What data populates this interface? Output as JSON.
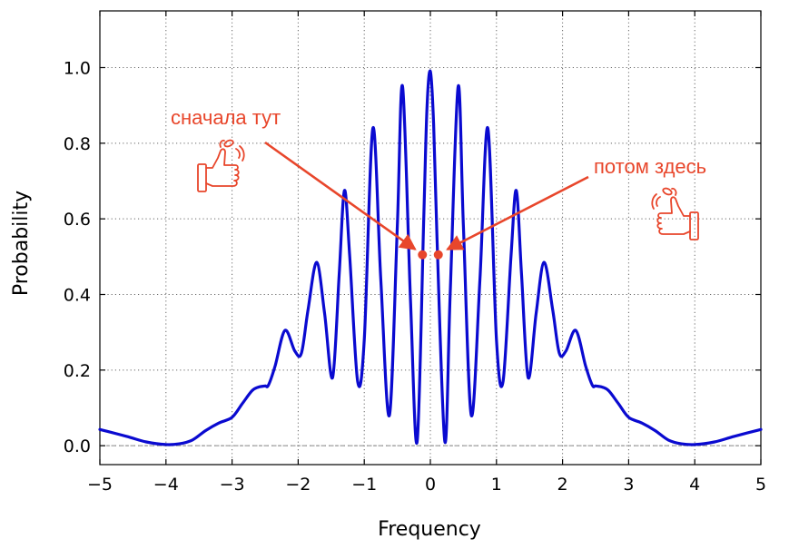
{
  "chart_data": {
    "type": "line",
    "xlabel": "Frequency",
    "ylabel": "Probability",
    "xlim": [
      -5,
      5
    ],
    "ylim": [
      -0.05,
      1.15
    ],
    "xticks": [
      -5,
      -4,
      -3,
      -2,
      -1,
      0,
      1,
      2,
      3,
      4,
      5
    ],
    "xtick_labels": [
      "−5",
      "−4",
      "−3",
      "−2",
      "−1",
      "0",
      "1",
      "2",
      "3",
      "4",
      "5"
    ],
    "yticks": [
      0.0,
      0.2,
      0.4,
      0.6,
      0.8,
      1.0
    ],
    "ytick_labels": [
      "0.0",
      "0.2",
      "0.4",
      "0.6",
      "0.8",
      "1.0"
    ],
    "grid": true,
    "reference_line": {
      "y": 0.0,
      "style": "dashed"
    },
    "series": [
      {
        "color": "#0a0ad0",
        "x": [
          -5.0,
          -4.6,
          -4.3,
          -4.0,
          -3.8,
          -3.6,
          -3.4,
          -3.2,
          -3.0,
          -2.85,
          -2.7,
          -2.6,
          -2.5,
          -2.45,
          -2.35,
          -2.2,
          -2.05,
          -1.95,
          -1.85,
          -1.72,
          -1.6,
          -1.48,
          -1.38,
          -1.3,
          -1.22,
          -1.1,
          -1.0,
          -0.87,
          -0.75,
          -0.62,
          -0.5,
          -0.42,
          -0.3,
          -0.2,
          -0.1,
          -0.05,
          0.0,
          0.05,
          0.1,
          0.22,
          0.3,
          0.42,
          0.5,
          0.62,
          0.75,
          0.87,
          1.0,
          1.1,
          1.22,
          1.3,
          1.38,
          1.48,
          1.6,
          1.72,
          1.85,
          1.95,
          2.05,
          2.2,
          2.35,
          2.45,
          2.5,
          2.6,
          2.7,
          2.85,
          3.0,
          3.2,
          3.4,
          3.6,
          3.8,
          4.0,
          4.3,
          4.6,
          5.0
        ],
        "y": [
          0.043,
          0.025,
          0.01,
          0.003,
          0.005,
          0.015,
          0.04,
          0.06,
          0.075,
          0.11,
          0.145,
          0.155,
          0.158,
          0.16,
          0.21,
          0.305,
          0.25,
          0.245,
          0.36,
          0.485,
          0.35,
          0.18,
          0.45,
          0.675,
          0.5,
          0.17,
          0.28,
          0.84,
          0.44,
          0.08,
          0.58,
          0.95,
          0.38,
          0.01,
          0.6,
          0.9,
          0.99,
          0.85,
          0.55,
          0.01,
          0.4,
          0.95,
          0.58,
          0.08,
          0.44,
          0.84,
          0.28,
          0.17,
          0.5,
          0.675,
          0.45,
          0.18,
          0.35,
          0.485,
          0.36,
          0.245,
          0.25,
          0.305,
          0.21,
          0.16,
          0.158,
          0.155,
          0.145,
          0.11,
          0.075,
          0.06,
          0.04,
          0.015,
          0.005,
          0.003,
          0.01,
          0.025,
          0.043
        ]
      }
    ],
    "markers": [
      {
        "x": -0.12,
        "y": 0.505,
        "color": "#e8462b"
      },
      {
        "x": 0.12,
        "y": 0.505,
        "color": "#e8462b"
      }
    ],
    "annotations": [
      {
        "text": "сначала тут",
        "color": "#e8462b",
        "points_to": {
          "x": -0.12,
          "y": 0.505
        }
      },
      {
        "text": "потом здесь",
        "color": "#e8462b",
        "points_to": {
          "x": 0.12,
          "y": 0.505
        }
      }
    ],
    "icons": [
      "thumb-up-with-coin-icon",
      "thumb-up-with-coin-icon"
    ]
  }
}
